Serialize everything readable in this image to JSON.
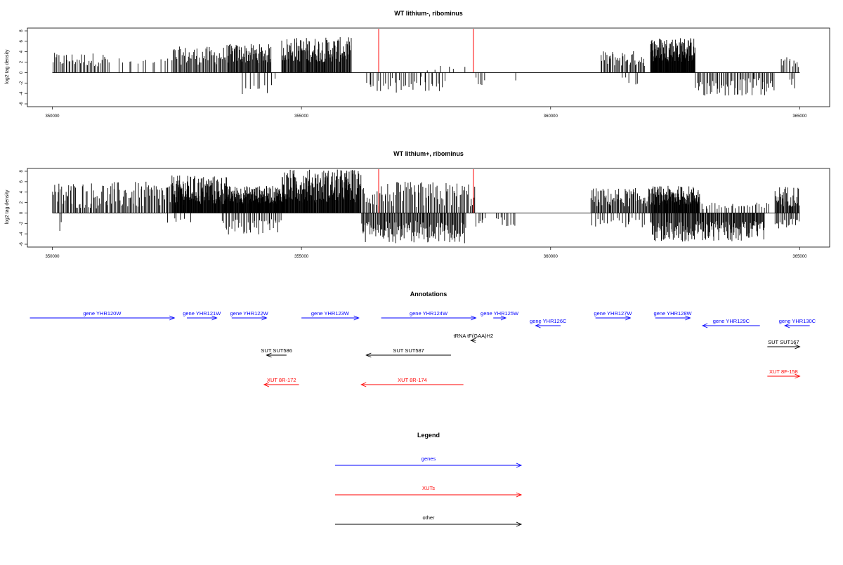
{
  "colors": {
    "genes": "#0000ff",
    "XUTs": "#ff0000",
    "other": "#000000",
    "bars": "#000000",
    "highlight": "#ff0000",
    "axis": "#000000"
  },
  "chart_data": [
    {
      "type": "bar",
      "title": "WT lithium-, ribominus",
      "xlabel": "",
      "ylabel": "log2 tag density",
      "xlim": [
        349500,
        365600
      ],
      "ylim": [
        -6,
        8
      ],
      "xticks": [
        "350000",
        "355000",
        "360000",
        "365000"
      ],
      "xtick_values": [
        350000,
        355000,
        360000,
        365000
      ],
      "yticks": [
        "-6",
        "-4",
        "-2",
        "0",
        "2",
        "4",
        "6",
        "8"
      ],
      "ytick_values": [
        -6,
        -4,
        -2,
        0,
        2,
        4,
        6,
        8
      ],
      "baseline_range": [
        350000,
        365000
      ],
      "highlight_positions": [
        356550,
        358450
      ],
      "pos_clusters": [
        [
          350000,
          351150,
          40,
          1.2,
          3.8
        ],
        [
          351300,
          352400,
          12,
          1.0,
          2.8
        ],
        [
          352400,
          353500,
          55,
          1.5,
          5.0
        ],
        [
          353500,
          354400,
          70,
          1.8,
          5.5
        ],
        [
          354600,
          356000,
          120,
          2.0,
          6.8
        ],
        [
          357400,
          358300,
          6,
          0.4,
          1.5
        ],
        [
          361000,
          361900,
          40,
          1.2,
          4.2
        ],
        [
          362000,
          362900,
          120,
          2.0,
          6.8
        ],
        [
          364600,
          365000,
          12,
          1.0,
          3.0
        ]
      ],
      "neg_clusters": [
        [
          353800,
          354500,
          10,
          -1.0,
          -4.2
        ],
        [
          356300,
          357900,
          35,
          -0.8,
          -4.0
        ],
        [
          358500,
          358700,
          5,
          -0.8,
          -2.5
        ],
        [
          359300,
          359300,
          1,
          -1.5,
          -1.5
        ],
        [
          361400,
          361800,
          5,
          -0.8,
          -2.8
        ],
        [
          362900,
          364500,
          60,
          -1.0,
          -4.5
        ],
        [
          364800,
          364900,
          4,
          -1.0,
          -3.5
        ]
      ]
    },
    {
      "type": "bar",
      "title": "WT lithium+, ribominus",
      "xlabel": "",
      "ylabel": "log2 tag density",
      "xlim": [
        349500,
        365600
      ],
      "ylim": [
        -6,
        8
      ],
      "xticks": [
        "350000",
        "355000",
        "360000",
        "365000"
      ],
      "xtick_values": [
        350000,
        355000,
        360000,
        365000
      ],
      "yticks": [
        "-6",
        "-4",
        "-2",
        "0",
        "2",
        "4",
        "6",
        "8"
      ],
      "ytick_values": [
        -6,
        -4,
        -2,
        0,
        2,
        4,
        6,
        8
      ],
      "baseline_range": [
        350000,
        365000
      ],
      "highlight_positions": [
        356550,
        358450
      ],
      "pos_clusters": [
        [
          350000,
          352400,
          110,
          0.8,
          6.0
        ],
        [
          352400,
          353500,
          140,
          1.5,
          7.2
        ],
        [
          353500,
          354600,
          150,
          1.8,
          5.2
        ],
        [
          354600,
          356200,
          190,
          2.0,
          8.4
        ],
        [
          356200,
          358500,
          90,
          1.0,
          6.0
        ],
        [
          360800,
          362000,
          70,
          1.2,
          4.8
        ],
        [
          362000,
          363000,
          120,
          1.5,
          5.2
        ],
        [
          363000,
          364400,
          30,
          0.5,
          2.0
        ],
        [
          364500,
          365000,
          40,
          1.2,
          5.2
        ]
      ],
      "neg_clusters": [
        [
          350150,
          350200,
          2,
          -1.5,
          -4.0
        ],
        [
          352300,
          352800,
          6,
          -0.8,
          -2.0
        ],
        [
          353400,
          354600,
          40,
          -1.0,
          -4.2
        ],
        [
          356200,
          358300,
          130,
          -1.5,
          -5.8
        ],
        [
          358500,
          358700,
          6,
          -1.0,
          -3.0
        ],
        [
          358900,
          359300,
          10,
          -0.8,
          -2.5
        ],
        [
          360800,
          361900,
          20,
          -0.8,
          -3.0
        ],
        [
          362000,
          364300,
          170,
          -1.5,
          -5.5
        ],
        [
          364500,
          365000,
          20,
          -1.0,
          -3.0
        ]
      ]
    }
  ],
  "annotations": {
    "title": "Annotations",
    "items": [
      {
        "label": "gene YHR120W",
        "start": 349550,
        "end": 352450,
        "row": 0,
        "strand": "+",
        "category": "genes"
      },
      {
        "label": "gene YHR121W",
        "start": 352700,
        "end": 353300,
        "row": 0,
        "strand": "+",
        "category": "genes"
      },
      {
        "label": "gene YHR122W",
        "start": 353600,
        "end": 354300,
        "row": 0,
        "strand": "+",
        "category": "genes"
      },
      {
        "label": "gene YHR123W",
        "start": 355000,
        "end": 356150,
        "row": 0,
        "strand": "+",
        "category": "genes"
      },
      {
        "label": "gene YHR124W",
        "start": 356600,
        "end": 358500,
        "row": 0,
        "strand": "+",
        "category": "genes"
      },
      {
        "label": "gene YHR125W",
        "start": 358850,
        "end": 359100,
        "row": 0,
        "strand": "+",
        "category": "genes"
      },
      {
        "label": "gene YHR126C",
        "start": 359700,
        "end": 360200,
        "row": 1,
        "strand": "-",
        "category": "genes"
      },
      {
        "label": "gene YHR127W",
        "start": 360900,
        "end": 361600,
        "row": 0,
        "strand": "+",
        "category": "genes"
      },
      {
        "label": "gene YHR128W",
        "start": 362100,
        "end": 362800,
        "row": 0,
        "strand": "+",
        "category": "genes"
      },
      {
        "label": "gene YHR129C",
        "start": 363050,
        "end": 364200,
        "row": 1,
        "strand": "-",
        "category": "genes"
      },
      {
        "label": "gene YHR130C",
        "start": 364700,
        "end": 365200,
        "row": 1,
        "strand": "-",
        "category": "genes"
      },
      {
        "label": "tRNA tF(GAA)H2",
        "start": 358400,
        "end": 358500,
        "row": 2,
        "strand": "-",
        "category": "other"
      },
      {
        "label": "SUT SUT586",
        "start": 354300,
        "end": 354700,
        "row": 3,
        "strand": "-",
        "category": "other"
      },
      {
        "label": "SUT SUT587",
        "start": 356300,
        "end": 358000,
        "row": 3,
        "strand": "-",
        "category": "other"
      },
      {
        "label": "SUT SUT167",
        "start": 364350,
        "end": 365000,
        "row": 4,
        "strand": "+",
        "category": "other"
      },
      {
        "label": "XUT 8R-172",
        "start": 354250,
        "end": 354950,
        "row": 5,
        "strand": "-",
        "category": "XUTs"
      },
      {
        "label": "XUT 8R-174",
        "start": 356200,
        "end": 358250,
        "row": 5,
        "strand": "-",
        "category": "XUTs"
      },
      {
        "label": "XUT 8F-158",
        "start": 364350,
        "end": 365000,
        "row": 6,
        "strand": "+",
        "category": "XUTs"
      }
    ]
  },
  "legend": {
    "title": "Legend",
    "items": [
      {
        "label": "genes",
        "category": "genes"
      },
      {
        "label": "XUTs",
        "category": "XUTs"
      },
      {
        "label": "other",
        "category": "other"
      }
    ]
  }
}
